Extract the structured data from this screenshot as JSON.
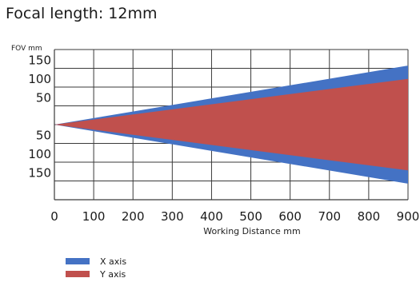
{
  "title": "Focal length: 12mm",
  "chart_data": {
    "type": "area",
    "title": "Focal length: 12mm",
    "xlabel": "Working Distance mm",
    "ylabel": "FOV mm",
    "x_ticks": [
      0,
      100,
      200,
      300,
      400,
      500,
      600,
      700,
      800,
      900
    ],
    "y_tick_labels": [
      "150",
      "100",
      "50",
      "50",
      "100",
      "150"
    ],
    "xlim": [
      0,
      900
    ],
    "ylim": [
      -210,
      210
    ],
    "grid": true,
    "legend_position": "bottom-left",
    "series": [
      {
        "name": "X axis",
        "color": "#4472c4",
        "x": [
          0,
          900
        ],
        "half_width": [
          0,
          165
        ]
      },
      {
        "name": "Y axis",
        "color": "#c0504d",
        "x": [
          0,
          900
        ],
        "half_width": [
          0,
          128
        ]
      }
    ]
  }
}
